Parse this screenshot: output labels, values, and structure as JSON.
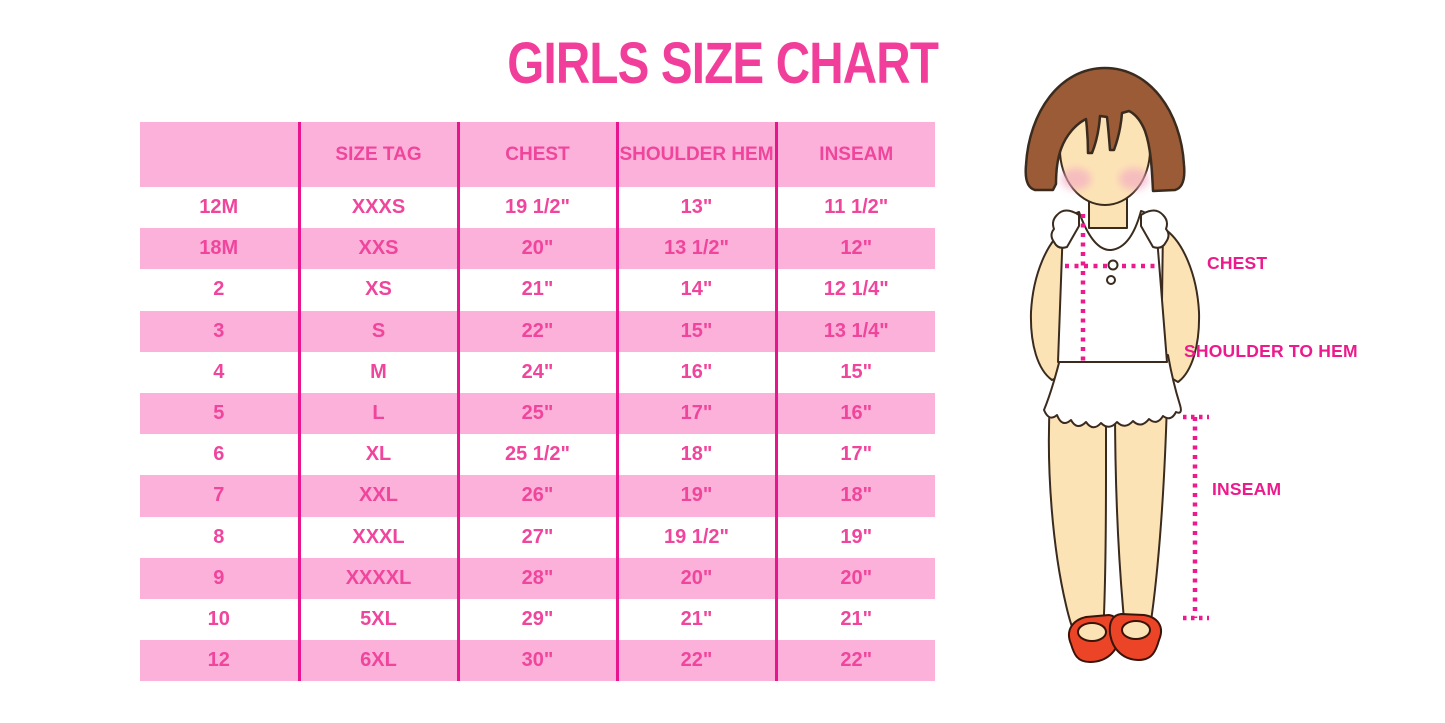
{
  "title": "GIRLS SIZE CHART",
  "chart_data": {
    "type": "table",
    "title": "GIRLS SIZE CHART",
    "headers": [
      "",
      "SIZE TAG",
      "CHEST",
      "SHOULDER HEM",
      "INSEAM"
    ],
    "rows": [
      [
        "12M",
        "XXXS",
        "19 1/2\"",
        "13\"",
        "11 1/2\""
      ],
      [
        "18M",
        "XXS",
        "20\"",
        "13 1/2\"",
        "12\""
      ],
      [
        "2",
        "XS",
        "21\"",
        "14\"",
        "12 1/4\""
      ],
      [
        "3",
        "S",
        "22\"",
        "15\"",
        "13 1/4\""
      ],
      [
        "4",
        "M",
        "24\"",
        "16\"",
        "15\""
      ],
      [
        "5",
        "L",
        "25\"",
        "17\"",
        "16\""
      ],
      [
        "6",
        "XL",
        "25 1/2\"",
        "18\"",
        "17\""
      ],
      [
        "7",
        "XXL",
        "26\"",
        "19\"",
        "18\""
      ],
      [
        "8",
        "XXXL",
        "27\"",
        "19 1/2\"",
        "19\""
      ],
      [
        "9",
        "XXXXL",
        "28\"",
        "20\"",
        "20\""
      ],
      [
        "10",
        "5XL",
        "29\"",
        "21\"",
        "21\""
      ],
      [
        "12",
        "6XL",
        "30\"",
        "22\"",
        "22\""
      ]
    ],
    "stripe_style": "alternating white and pink rows, pink header, magenta column dividers"
  },
  "figure_labels": {
    "chest": "CHEST",
    "shoulder_to_hem": "SHOULDER TO HEM",
    "inseam": "INSEAM"
  },
  "colors": {
    "title_pink": "#F23E9B",
    "stripe_pink": "#FBB1D9",
    "divider_magenta": "#E8158F",
    "cell_text_pink": "#F0459C",
    "label_magenta": "#EC1A8C",
    "hair_brown": "#9A5B36",
    "skin_tone": "#FCE3B6",
    "blush_pink": "#F3A9C2",
    "shoe_red": "#EB4426",
    "outline_dark": "#3A2B1E"
  }
}
